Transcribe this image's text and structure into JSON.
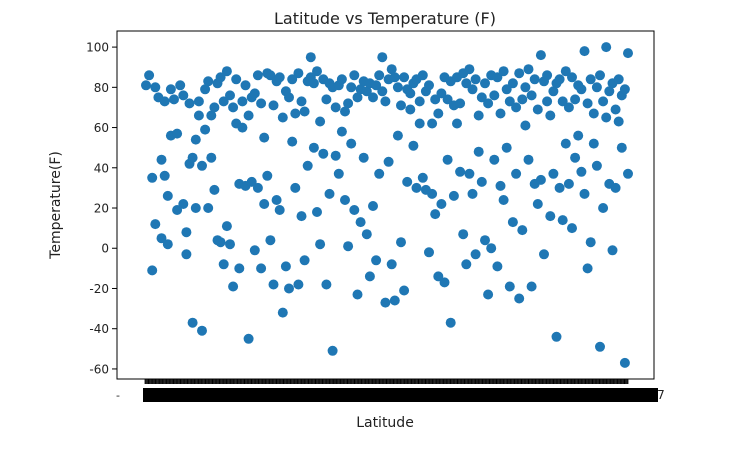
{
  "chart_data": {
    "type": "scatter",
    "title": "Latitude vs Temperature (F)",
    "xlabel": "Latitude",
    "ylabel": "Temperature(F)",
    "ylim": [
      -65,
      108
    ],
    "yticks": [
      100,
      80,
      60,
      40,
      20,
      0,
      -20,
      -40,
      -60
    ],
    "grid": false,
    "legend": "none",
    "marker_color": "#1f77b4",
    "x_tick_labels_overlapping": true,
    "x_tick_label_first": "-",
    "x_tick_label_last": "7",
    "series": [
      {
        "points": [
          [
            0,
            81
          ],
          [
            1,
            86
          ],
          [
            2,
            35
          ],
          [
            2,
            -11
          ],
          [
            3,
            80
          ],
          [
            3,
            12
          ],
          [
            4,
            75
          ],
          [
            5,
            5
          ],
          [
            5,
            44
          ],
          [
            6,
            73
          ],
          [
            6,
            36
          ],
          [
            7,
            26
          ],
          [
            7,
            2
          ],
          [
            8,
            79
          ],
          [
            8,
            56
          ],
          [
            9,
            74
          ],
          [
            10,
            57
          ],
          [
            10,
            19
          ],
          [
            11,
            81
          ],
          [
            12,
            76
          ],
          [
            12,
            22
          ],
          [
            13,
            8
          ],
          [
            13,
            -3
          ],
          [
            14,
            72
          ],
          [
            14,
            42
          ],
          [
            15,
            45
          ],
          [
            15,
            -37
          ],
          [
            16,
            54
          ],
          [
            16,
            20
          ],
          [
            17,
            73
          ],
          [
            17,
            66
          ],
          [
            18,
            41
          ],
          [
            18,
            -41
          ],
          [
            19,
            79
          ],
          [
            19,
            59
          ],
          [
            20,
            83
          ],
          [
            20,
            20
          ],
          [
            21,
            66
          ],
          [
            21,
            45
          ],
          [
            22,
            70
          ],
          [
            22,
            29
          ],
          [
            23,
            82
          ],
          [
            23,
            4
          ],
          [
            24,
            85
          ],
          [
            24,
            3
          ],
          [
            25,
            73
          ],
          [
            25,
            -8
          ],
          [
            26,
            88
          ],
          [
            26,
            11
          ],
          [
            27,
            76
          ],
          [
            27,
            2
          ],
          [
            28,
            70
          ],
          [
            28,
            -19
          ],
          [
            29,
            84
          ],
          [
            29,
            62
          ],
          [
            30,
            32
          ],
          [
            30,
            -10
          ],
          [
            31,
            73
          ],
          [
            31,
            60
          ],
          [
            32,
            81
          ],
          [
            32,
            31
          ],
          [
            33,
            66
          ],
          [
            33,
            -45
          ],
          [
            34,
            75
          ],
          [
            34,
            33
          ],
          [
            35,
            77
          ],
          [
            35,
            -1
          ],
          [
            36,
            86
          ],
          [
            36,
            30
          ],
          [
            37,
            72
          ],
          [
            37,
            -10
          ],
          [
            38,
            55
          ],
          [
            38,
            22
          ],
          [
            39,
            87
          ],
          [
            39,
            36
          ],
          [
            40,
            86
          ],
          [
            40,
            4
          ],
          [
            41,
            71
          ],
          [
            41,
            -18
          ],
          [
            42,
            83
          ],
          [
            42,
            24
          ],
          [
            43,
            85
          ],
          [
            43,
            19
          ],
          [
            44,
            65
          ],
          [
            44,
            -32
          ],
          [
            45,
            78
          ],
          [
            45,
            -9
          ],
          [
            46,
            75
          ],
          [
            46,
            -20
          ],
          [
            47,
            84
          ],
          [
            47,
            53
          ],
          [
            48,
            67
          ],
          [
            48,
            30
          ],
          [
            49,
            87
          ],
          [
            49,
            -18
          ],
          [
            50,
            73
          ],
          [
            50,
            16
          ],
          [
            51,
            68
          ],
          [
            51,
            -6
          ],
          [
            52,
            83
          ],
          [
            52,
            41
          ],
          [
            53,
            85
          ],
          [
            53,
            95
          ],
          [
            54,
            82
          ],
          [
            54,
            50
          ],
          [
            55,
            88
          ],
          [
            55,
            18
          ],
          [
            56,
            63
          ],
          [
            56,
            2
          ],
          [
            57,
            84
          ],
          [
            57,
            47
          ],
          [
            58,
            74
          ],
          [
            58,
            -18
          ],
          [
            59,
            82
          ],
          [
            59,
            27
          ],
          [
            60,
            80
          ],
          [
            60,
            -51
          ],
          [
            61,
            70
          ],
          [
            61,
            46
          ],
          [
            62,
            81
          ],
          [
            62,
            37
          ],
          [
            63,
            84
          ],
          [
            63,
            58
          ],
          [
            64,
            68
          ],
          [
            64,
            24
          ],
          [
            65,
            72
          ],
          [
            65,
            1
          ],
          [
            66,
            80
          ],
          [
            66,
            52
          ],
          [
            67,
            86
          ],
          [
            67,
            19
          ],
          [
            68,
            75
          ],
          [
            68,
            -23
          ],
          [
            69,
            79
          ],
          [
            69,
            13
          ],
          [
            70,
            83
          ],
          [
            70,
            45
          ],
          [
            71,
            78
          ],
          [
            71,
            7
          ],
          [
            72,
            82
          ],
          [
            72,
            -14
          ],
          [
            73,
            75
          ],
          [
            73,
            21
          ],
          [
            74,
            81
          ],
          [
            74,
            -6
          ],
          [
            75,
            86
          ],
          [
            75,
            37
          ],
          [
            76,
            78
          ],
          [
            76,
            95
          ],
          [
            77,
            73
          ],
          [
            77,
            -27
          ],
          [
            78,
            84
          ],
          [
            78,
            43
          ],
          [
            79,
            89
          ],
          [
            79,
            -8
          ],
          [
            80,
            85
          ],
          [
            80,
            -26
          ],
          [
            81,
            80
          ],
          [
            81,
            56
          ],
          [
            82,
            71
          ],
          [
            82,
            3
          ],
          [
            83,
            85
          ],
          [
            83,
            -21
          ],
          [
            84,
            79
          ],
          [
            84,
            33
          ],
          [
            85,
            77
          ],
          [
            85,
            69
          ],
          [
            86,
            82
          ],
          [
            86,
            51
          ],
          [
            87,
            84
          ],
          [
            87,
            30
          ],
          [
            88,
            73
          ],
          [
            88,
            62
          ],
          [
            89,
            86
          ],
          [
            89,
            35
          ],
          [
            90,
            78
          ],
          [
            90,
            29
          ],
          [
            91,
            81
          ],
          [
            91,
            -2
          ],
          [
            92,
            62
          ],
          [
            92,
            27
          ],
          [
            93,
            74
          ],
          [
            93,
            17
          ],
          [
            94,
            67
          ],
          [
            94,
            -14
          ],
          [
            95,
            77
          ],
          [
            95,
            22
          ],
          [
            96,
            85
          ],
          [
            96,
            -17
          ],
          [
            97,
            74
          ],
          [
            97,
            44
          ],
          [
            98,
            83
          ],
          [
            98,
            -37
          ],
          [
            99,
            71
          ],
          [
            99,
            26
          ],
          [
            100,
            85
          ],
          [
            100,
            62
          ],
          [
            101,
            72
          ],
          [
            101,
            38
          ],
          [
            102,
            87
          ],
          [
            102,
            7
          ],
          [
            103,
            82
          ],
          [
            103,
            -8
          ],
          [
            104,
            89
          ],
          [
            104,
            37
          ],
          [
            105,
            79
          ],
          [
            105,
            27
          ],
          [
            106,
            84
          ],
          [
            106,
            -3
          ],
          [
            107,
            66
          ],
          [
            107,
            48
          ],
          [
            108,
            75
          ],
          [
            108,
            33
          ],
          [
            109,
            82
          ],
          [
            109,
            4
          ],
          [
            110,
            72
          ],
          [
            110,
            -23
          ],
          [
            111,
            86
          ],
          [
            111,
            0
          ],
          [
            112,
            76
          ],
          [
            112,
            44
          ],
          [
            113,
            85
          ],
          [
            113,
            -9
          ],
          [
            114,
            67
          ],
          [
            114,
            31
          ],
          [
            115,
            88
          ],
          [
            115,
            24
          ],
          [
            116,
            79
          ],
          [
            116,
            50
          ],
          [
            117,
            73
          ],
          [
            117,
            -19
          ],
          [
            118,
            82
          ],
          [
            118,
            13
          ],
          [
            119,
            70
          ],
          [
            119,
            37
          ],
          [
            120,
            87
          ],
          [
            120,
            -25
          ],
          [
            121,
            74
          ],
          [
            121,
            9
          ],
          [
            122,
            80
          ],
          [
            122,
            61
          ],
          [
            123,
            89
          ],
          [
            123,
            44
          ],
          [
            124,
            76
          ],
          [
            124,
            -19
          ],
          [
            125,
            84
          ],
          [
            125,
            32
          ],
          [
            126,
            69
          ],
          [
            126,
            22
          ],
          [
            127,
            96
          ],
          [
            127,
            34
          ],
          [
            128,
            83
          ],
          [
            128,
            -3
          ],
          [
            129,
            86
          ],
          [
            129,
            73
          ],
          [
            130,
            66
          ],
          [
            130,
            16
          ],
          [
            131,
            78
          ],
          [
            131,
            37
          ],
          [
            132,
            82
          ],
          [
            132,
            -44
          ],
          [
            133,
            84
          ],
          [
            133,
            30
          ],
          [
            134,
            73
          ],
          [
            134,
            14
          ],
          [
            135,
            88
          ],
          [
            135,
            52
          ],
          [
            136,
            70
          ],
          [
            136,
            32
          ],
          [
            137,
            85
          ],
          [
            137,
            10
          ],
          [
            138,
            74
          ],
          [
            138,
            45
          ],
          [
            139,
            81
          ],
          [
            139,
            56
          ],
          [
            140,
            79
          ],
          [
            140,
            38
          ],
          [
            141,
            98
          ],
          [
            141,
            27
          ],
          [
            142,
            72
          ],
          [
            142,
            -10
          ],
          [
            143,
            84
          ],
          [
            143,
            3
          ],
          [
            144,
            67
          ],
          [
            144,
            52
          ],
          [
            145,
            80
          ],
          [
            145,
            41
          ],
          [
            146,
            86
          ],
          [
            146,
            -49
          ],
          [
            147,
            73
          ],
          [
            147,
            20
          ],
          [
            148,
            100
          ],
          [
            148,
            65
          ],
          [
            149,
            78
          ],
          [
            149,
            32
          ],
          [
            150,
            82
          ],
          [
            150,
            -1
          ],
          [
            151,
            69
          ],
          [
            151,
            30
          ],
          [
            152,
            84
          ],
          [
            152,
            63
          ],
          [
            153,
            76
          ],
          [
            153,
            50
          ],
          [
            154,
            79
          ],
          [
            154,
            -57
          ],
          [
            155,
            97
          ],
          [
            155,
            37
          ]
        ]
      }
    ]
  }
}
